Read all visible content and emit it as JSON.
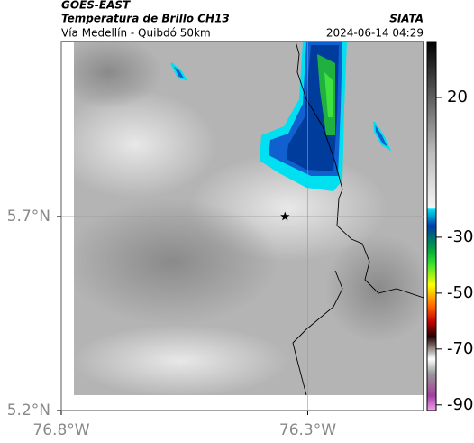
{
  "header": {
    "source": "GOES-EAST",
    "title": "Temperatura de Brillo CH13",
    "subtitle": "Vía Medellín - Quibdó 50km",
    "agency": "SIATA",
    "timestamp": "2024-06-14 04:29"
  },
  "map": {
    "xlim": [
      -76.8,
      -76.065
    ],
    "ylim": [
      5.2,
      6.151
    ],
    "xticks": [
      {
        "value": -76.8,
        "label": "76.8°W"
      },
      {
        "value": -76.3,
        "label": "76.3°W"
      }
    ],
    "yticks": [
      {
        "value": 5.7,
        "label": "5.7°N"
      },
      {
        "value": 5.2,
        "label": "5.2°N"
      }
    ],
    "marker": {
      "lon": -76.346,
      "lat": 5.7
    }
  },
  "colorbar": {
    "lim": [
      -92,
      40
    ],
    "ticks": [
      20,
      -30,
      -50,
      -70,
      -90
    ]
  }
}
